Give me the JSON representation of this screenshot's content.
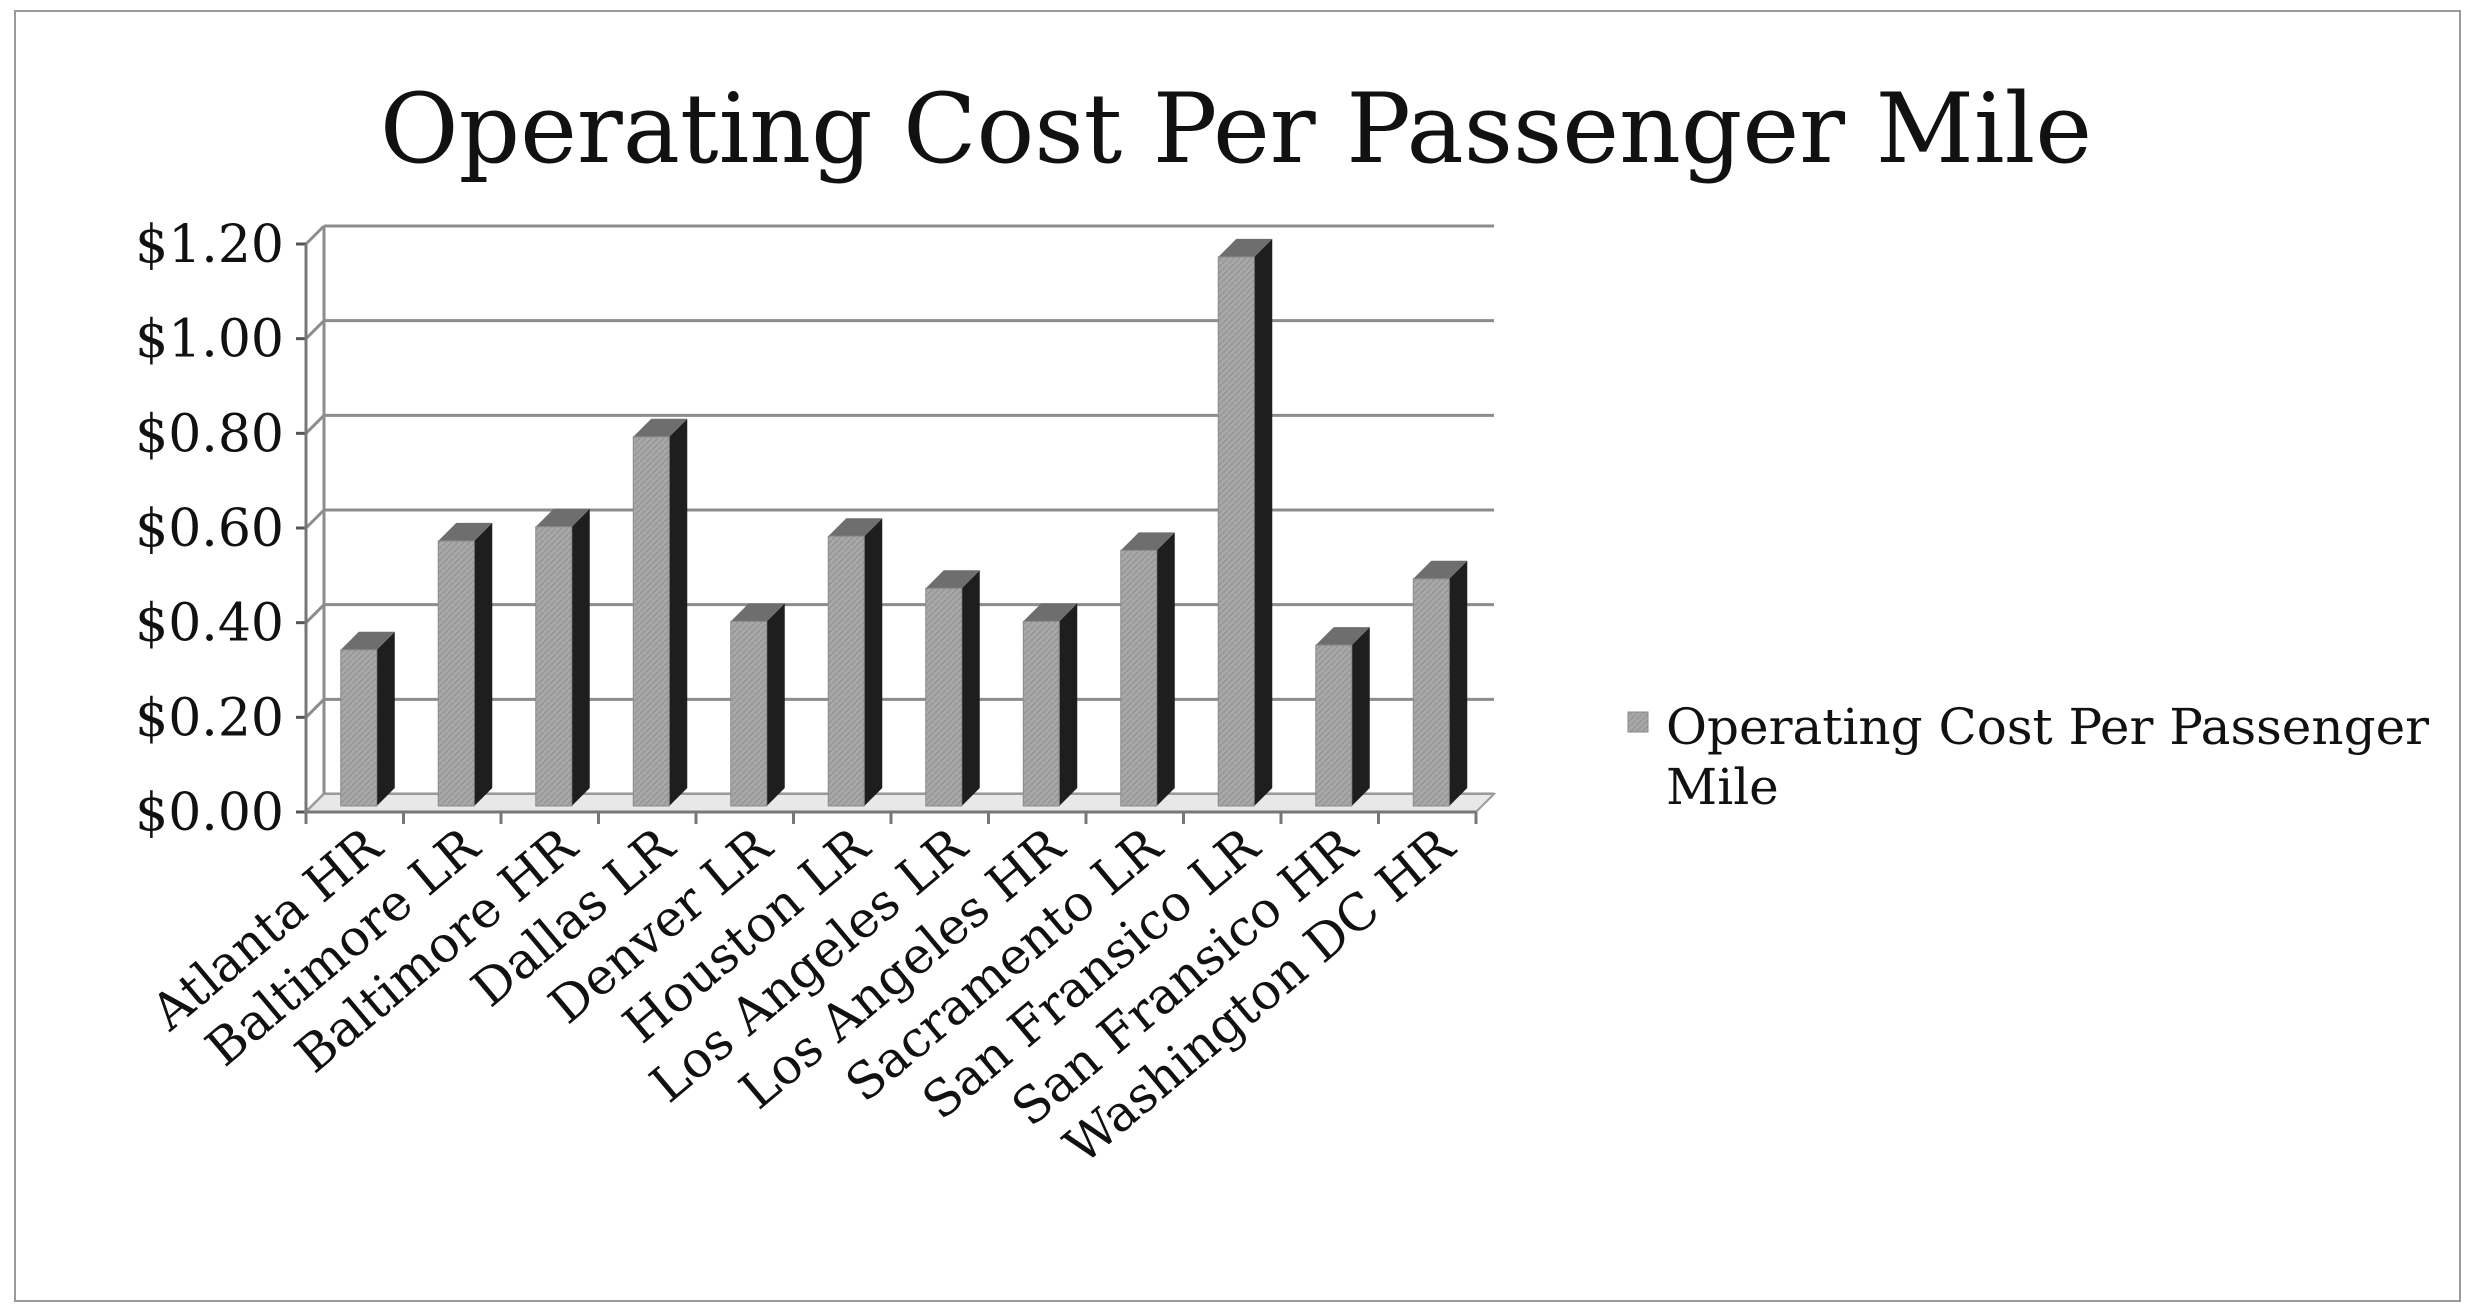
{
  "chart_data": {
    "type": "bar",
    "title": "Operating Cost Per Passenger Mile",
    "xlabel": "",
    "ylabel": "",
    "categories": [
      "Atlanta HR",
      "Baltimore LR",
      "Baltimore HR",
      "Dallas LR",
      "Denver LR",
      "Houston LR",
      "Los Angeles LR",
      "Los Angeles HR",
      "Sacramento LR",
      "San Fransico LR",
      "San Fransico HR",
      "Washington DC HR"
    ],
    "series": [
      {
        "name": "Operating Cost Per Passenger Mile",
        "values": [
          0.33,
          0.56,
          0.59,
          0.78,
          0.39,
          0.57,
          0.46,
          0.39,
          0.54,
          1.16,
          0.34,
          0.48
        ]
      }
    ],
    "ylim": [
      0,
      1.2
    ],
    "yticks": [
      0.0,
      0.2,
      0.4,
      0.6,
      0.8,
      1.0,
      1.2
    ],
    "ytick_labels": [
      "$0.00",
      "$0.20",
      "$0.40",
      "$0.60",
      "$0.80",
      "$1.00",
      "$1.20"
    ],
    "grid": true,
    "legend": {
      "position": "right",
      "lines": [
        "Operating Cost Per Passenger",
        "Mile"
      ]
    },
    "colors": {
      "bar_front": "#a6a6a6",
      "bar_side": "#1e1e1e",
      "bar_top": "#6e6e6e",
      "grid": "#8c8c8c"
    }
  }
}
